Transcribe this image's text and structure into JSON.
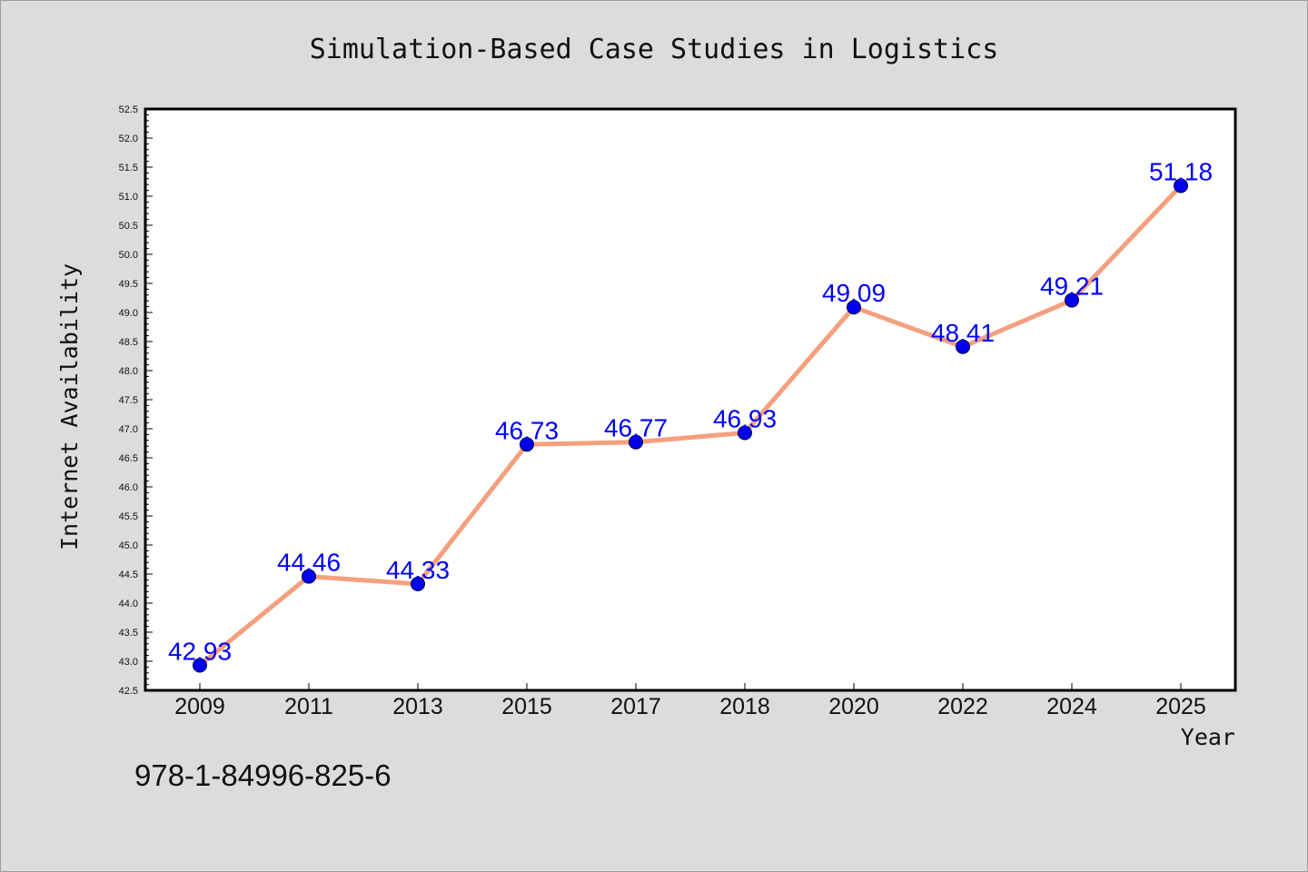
{
  "chart_data": {
    "type": "line",
    "title": "Simulation-Based Case Studies in Logistics",
    "xlabel": "Year",
    "ylabel": "Internet Availability",
    "categories": [
      "2009",
      "2011",
      "2013",
      "2015",
      "2017",
      "2018",
      "2020",
      "2022",
      "2024",
      "2025"
    ],
    "values": [
      42.93,
      44.46,
      44.33,
      46.73,
      46.77,
      46.93,
      49.09,
      48.41,
      49.21,
      51.18
    ],
    "data_labels": [
      "42.93",
      "44.46",
      "44.33",
      "46.73",
      "46.77",
      "46.93",
      "49.09",
      "48.41",
      "49.21",
      "51.18"
    ],
    "ylim": [
      42.5,
      52.5
    ],
    "yticks": [
      "42.5",
      "43.0",
      "43.5",
      "44.0",
      "44.5",
      "45.0",
      "45.5",
      "46.0",
      "46.5",
      "47.0",
      "47.5",
      "48.0",
      "48.5",
      "49.0",
      "49.5",
      "50.0",
      "50.5",
      "51.0",
      "51.5",
      "52.0",
      "52.5"
    ],
    "grid": false,
    "legend": "none",
    "colors": {
      "line": "#f4a07e",
      "marker": "#0000ee",
      "label": "#0000ff",
      "background": "#dcdcdc",
      "plot": "#ffffff"
    }
  },
  "footer": {
    "isbn": "978-1-84996-825-6"
  }
}
